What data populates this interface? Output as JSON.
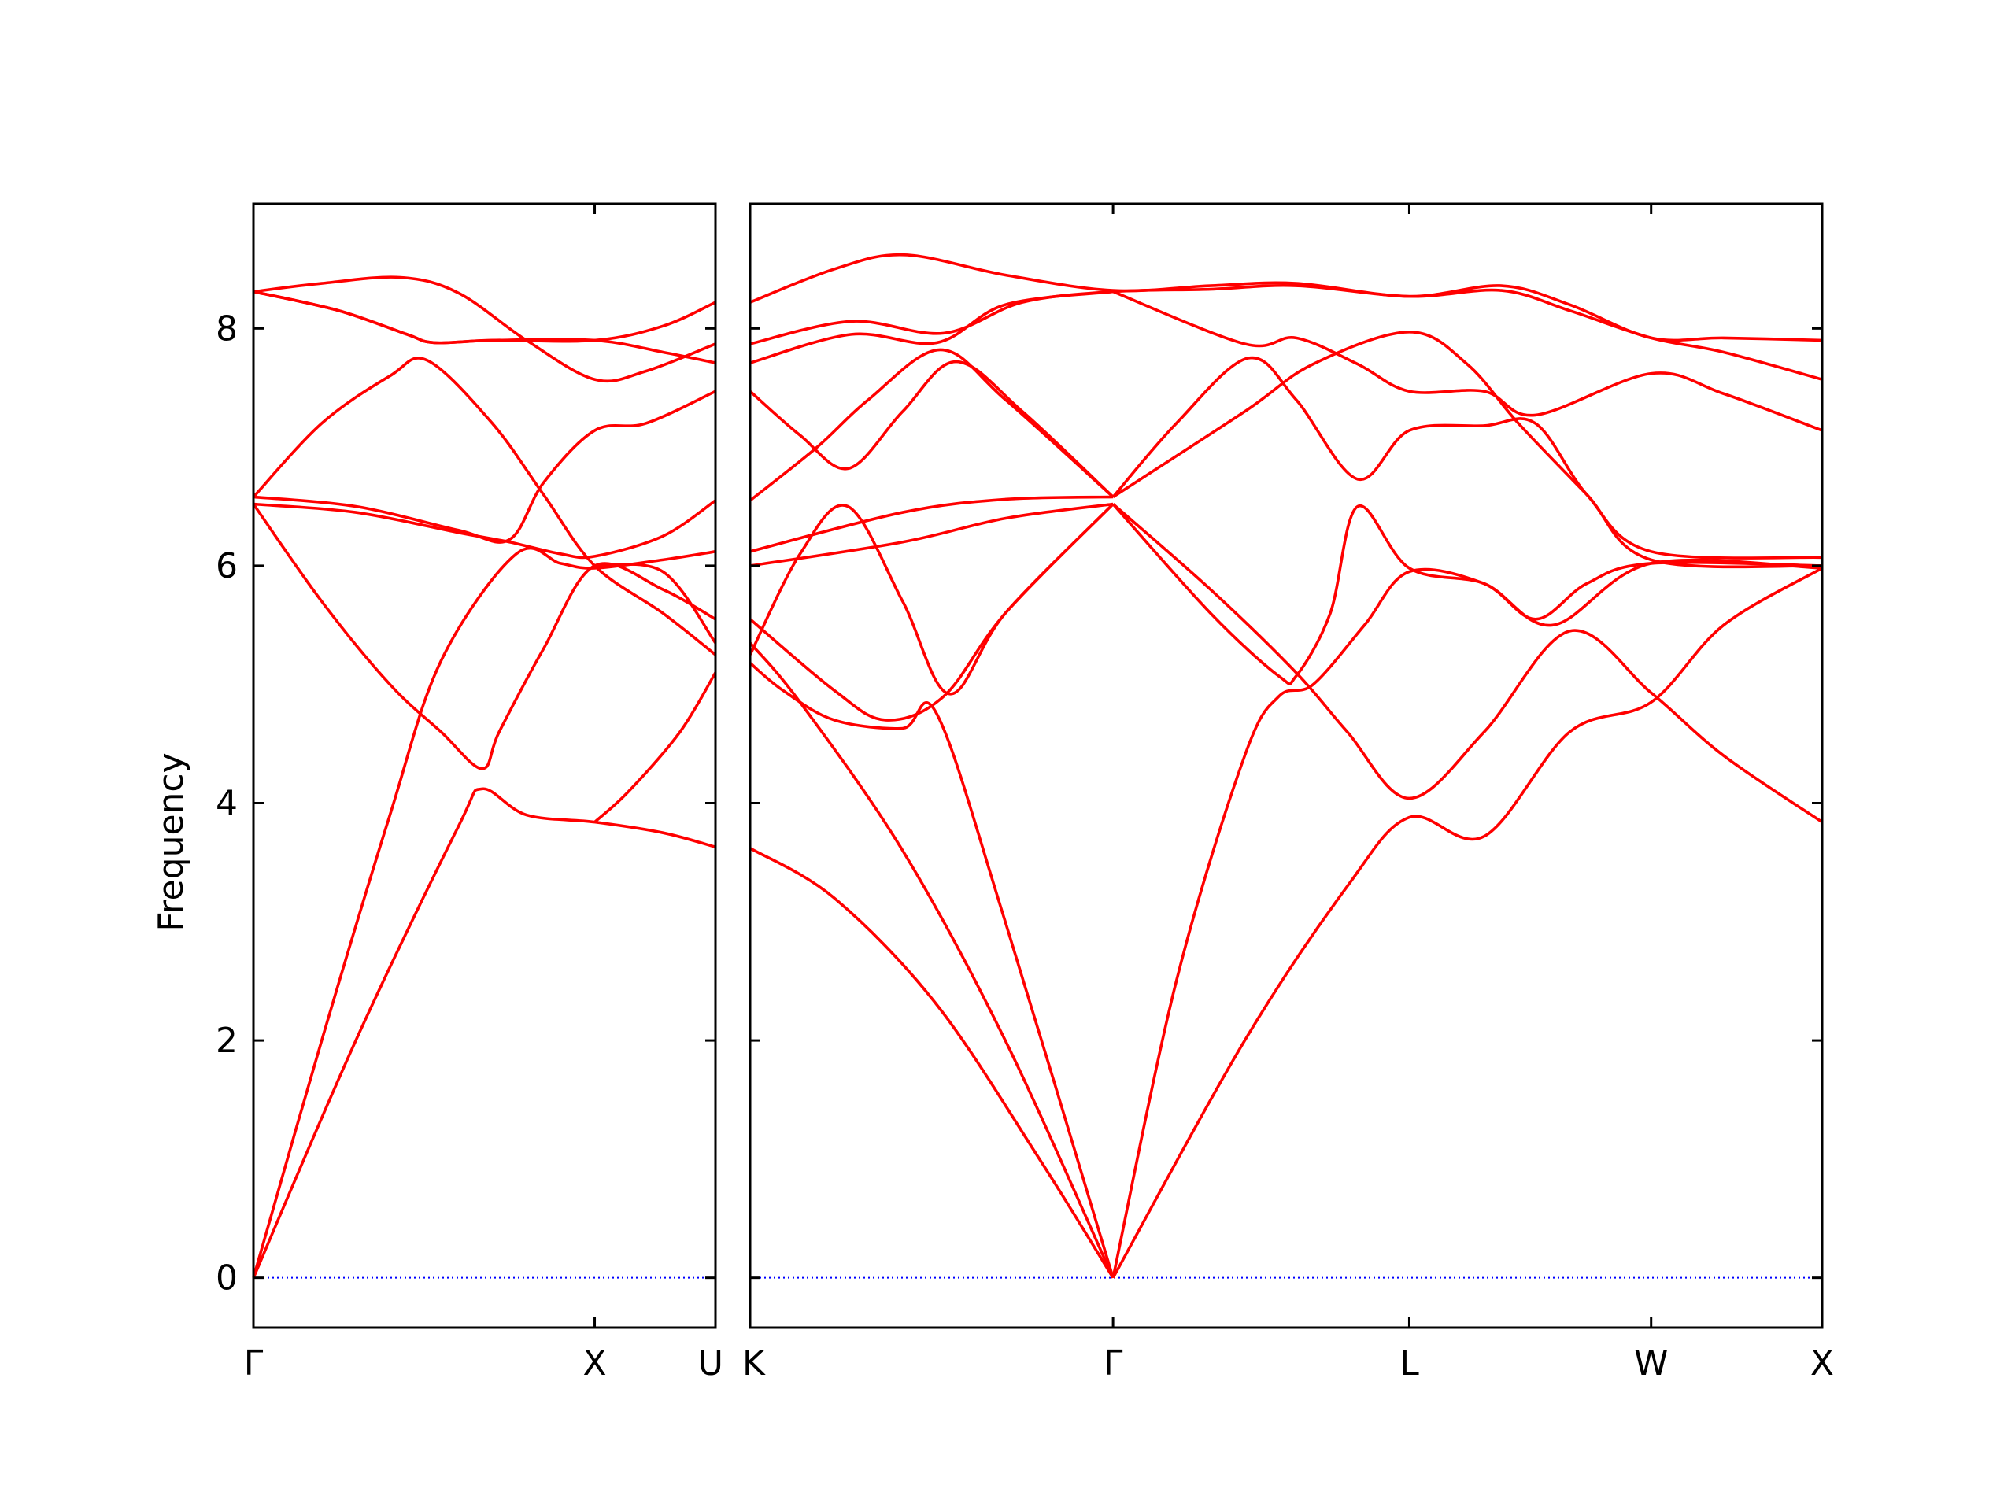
{
  "chart_data": {
    "type": "line",
    "title": "",
    "xlabel": "",
    "ylabel": "Frequency",
    "ylim": [
      -0.42,
      9.05
    ],
    "yticks": [
      0,
      2,
      4,
      6,
      8
    ],
    "grid": false,
    "line_color": "#ff0000",
    "zero_line_color": "#0000ff",
    "panels": [
      {
        "xlim": [
          0,
          1.354
        ],
        "ticks": [
          {
            "x": 0,
            "label": "Γ"
          },
          {
            "x": 1.0,
            "label": "X"
          },
          {
            "x": 1.354,
            "label": "U"
          }
        ]
      },
      {
        "xlim": [
          1.354,
          4.488
        ],
        "ticks": [
          {
            "x": 1.354,
            "label": "K"
          },
          {
            "x": 2.415,
            "label": "Γ"
          },
          {
            "x": 3.281,
            "label": "L"
          },
          {
            "x": 3.988,
            "label": "W"
          },
          {
            "x": 4.488,
            "label": "X"
          }
        ]
      }
    ],
    "series": [
      {
        "panel": 0,
        "points": [
          [
            0,
            8.31
          ],
          [
            0.2,
            8.38
          ],
          [
            0.43,
            8.43
          ],
          [
            0.6,
            8.3
          ],
          [
            0.8,
            7.9
          ],
          [
            1.0,
            7.57
          ],
          [
            1.15,
            7.64
          ],
          [
            1.354,
            7.87
          ]
        ]
      },
      {
        "panel": 0,
        "points": [
          [
            0,
            8.31
          ],
          [
            0.25,
            8.15
          ],
          [
            0.45,
            7.95
          ],
          [
            0.53,
            7.88
          ],
          [
            0.7,
            7.9
          ],
          [
            1.0,
            7.9
          ],
          [
            1.2,
            8.02
          ],
          [
            1.354,
            8.22
          ]
        ]
      },
      {
        "panel": 0,
        "points": [
          [
            0,
            8.31
          ],
          [
            0.25,
            8.15
          ],
          [
            0.45,
            7.95
          ],
          [
            0.53,
            7.88
          ],
          [
            0.7,
            7.9
          ],
          [
            1.0,
            7.9
          ],
          [
            1.2,
            7.8
          ],
          [
            1.354,
            7.71
          ]
        ]
      },
      {
        "panel": 0,
        "points": [
          [
            0,
            6.58
          ],
          [
            0.2,
            7.2
          ],
          [
            0.4,
            7.6
          ],
          [
            0.51,
            7.73
          ],
          [
            0.7,
            7.2
          ],
          [
            0.85,
            6.6
          ],
          [
            1.0,
            6.0
          ],
          [
            1.2,
            5.6
          ],
          [
            1.354,
            5.25
          ]
        ]
      },
      {
        "panel": 0,
        "points": [
          [
            0,
            6.52
          ],
          [
            0.2,
            5.7
          ],
          [
            0.4,
            5.0
          ],
          [
            0.55,
            4.6
          ],
          [
            0.67,
            4.29
          ],
          [
            0.72,
            4.6
          ],
          [
            0.85,
            5.3
          ],
          [
            1.0,
            6.0
          ],
          [
            1.2,
            5.8
          ],
          [
            1.354,
            5.55
          ]
        ]
      },
      {
        "panel": 0,
        "points": [
          [
            0,
            0
          ],
          [
            0.2,
            2.0
          ],
          [
            0.4,
            3.9
          ],
          [
            0.55,
            5.2
          ],
          [
            0.77,
            6.1
          ],
          [
            0.9,
            6.02
          ],
          [
            1.0,
            5.98
          ],
          [
            1.2,
            6.05
          ],
          [
            1.354,
            6.12
          ]
        ]
      },
      {
        "panel": 0,
        "points": [
          [
            0,
            0
          ],
          [
            0.3,
            2.0
          ],
          [
            0.6,
            3.8
          ],
          [
            0.67,
            4.12
          ],
          [
            0.8,
            3.9
          ],
          [
            1.0,
            3.84
          ],
          [
            1.2,
            3.75
          ],
          [
            1.354,
            3.63
          ]
        ]
      },
      {
        "panel": 0,
        "points": [
          [
            0,
            6.58
          ],
          [
            0.3,
            6.5
          ],
          [
            0.6,
            6.3
          ],
          [
            0.75,
            6.22
          ],
          [
            0.85,
            6.7
          ],
          [
            1.0,
            7.14
          ],
          [
            1.15,
            7.2
          ],
          [
            1.354,
            7.47
          ]
        ]
      },
      {
        "panel": 0,
        "points": [
          [
            0,
            6.52
          ],
          [
            0.3,
            6.45
          ],
          [
            0.6,
            6.28
          ],
          [
            0.75,
            6.2
          ],
          [
            0.9,
            6.1
          ],
          [
            1.0,
            6.08
          ],
          [
            1.2,
            6.25
          ],
          [
            1.354,
            6.55
          ]
        ]
      },
      {
        "panel": 0,
        "points": [
          [
            1.0,
            6.0
          ],
          [
            1.2,
            5.95
          ],
          [
            1.354,
            5.35
          ]
        ]
      },
      {
        "panel": 0,
        "points": [
          [
            1.0,
            3.84
          ],
          [
            1.1,
            4.1
          ],
          [
            1.25,
            4.6
          ],
          [
            1.354,
            5.1
          ]
        ]
      },
      {
        "panel": 1,
        "points": [
          [
            1.354,
            8.22
          ],
          [
            1.6,
            8.5
          ],
          [
            1.805,
            8.62
          ],
          [
            2.1,
            8.45
          ],
          [
            2.415,
            8.32
          ],
          [
            2.7,
            8.36
          ],
          [
            2.95,
            8.38
          ],
          [
            3.281,
            8.27
          ],
          [
            3.55,
            8.36
          ],
          [
            3.75,
            8.2
          ],
          [
            3.988,
            7.92
          ],
          [
            4.2,
            7.92
          ],
          [
            4.488,
            7.9
          ]
        ]
      },
      {
        "panel": 1,
        "points": [
          [
            1.354,
            7.87
          ],
          [
            1.65,
            8.06
          ],
          [
            1.92,
            7.96
          ],
          [
            2.15,
            8.22
          ],
          [
            2.415,
            8.31
          ],
          [
            2.7,
            8.33
          ],
          [
            2.95,
            8.36
          ],
          [
            3.281,
            8.27
          ],
          [
            3.55,
            8.32
          ],
          [
            3.75,
            8.15
          ],
          [
            3.988,
            7.92
          ],
          [
            4.2,
            7.8
          ],
          [
            4.488,
            7.57
          ]
        ]
      },
      {
        "panel": 1,
        "points": [
          [
            1.354,
            7.71
          ],
          [
            1.65,
            7.95
          ],
          [
            1.9,
            7.88
          ],
          [
            2.1,
            8.2
          ],
          [
            2.415,
            8.31
          ]
        ]
      },
      {
        "panel": 1,
        "points": [
          [
            1.354,
            7.47
          ],
          [
            1.5,
            7.1
          ],
          [
            1.642,
            6.82
          ],
          [
            1.8,
            7.3
          ],
          [
            1.956,
            7.72
          ],
          [
            2.15,
            7.3
          ],
          [
            2.415,
            6.58
          ]
        ]
      },
      {
        "panel": 1,
        "points": [
          [
            1.354,
            6.55
          ],
          [
            1.55,
            7.0
          ],
          [
            1.7,
            7.4
          ],
          [
            1.91,
            7.82
          ],
          [
            2.1,
            7.4
          ],
          [
            2.415,
            6.58
          ]
        ]
      },
      {
        "panel": 1,
        "points": [
          [
            1.354,
            6.12
          ],
          [
            1.8,
            6.45
          ],
          [
            2.1,
            6.56
          ],
          [
            2.415,
            6.58
          ]
        ]
      },
      {
        "panel": 1,
        "points": [
          [
            1.354,
            6.0
          ],
          [
            1.8,
            6.2
          ],
          [
            2.1,
            6.4
          ],
          [
            2.415,
            6.52
          ]
        ]
      },
      {
        "panel": 1,
        "points": [
          [
            1.354,
            5.55
          ],
          [
            1.6,
            4.95
          ],
          [
            1.75,
            4.7
          ],
          [
            1.92,
            4.9
          ],
          [
            2.1,
            5.6
          ],
          [
            2.415,
            6.52
          ]
        ]
      },
      {
        "panel": 1,
        "points": [
          [
            1.354,
            5.25
          ],
          [
            1.5,
            6.1
          ],
          [
            1.64,
            6.5
          ],
          [
            1.8,
            5.7
          ],
          [
            1.937,
            4.92
          ],
          [
            2.1,
            5.6
          ],
          [
            2.415,
            6.52
          ]
        ]
      },
      {
        "panel": 1,
        "points": [
          [
            1.354,
            5.18
          ],
          [
            1.45,
            4.95
          ],
          [
            1.6,
            4.7
          ],
          [
            1.8,
            4.63
          ],
          [
            1.9,
            4.75
          ],
          [
            2.1,
            3.0
          ],
          [
            2.415,
            0
          ]
        ]
      },
      {
        "panel": 1,
        "points": [
          [
            1.354,
            5.35
          ],
          [
            1.5,
            4.85
          ],
          [
            1.8,
            3.6
          ],
          [
            2.1,
            2.0
          ],
          [
            2.415,
            0
          ]
        ]
      },
      {
        "panel": 1,
        "points": [
          [
            1.354,
            3.62
          ],
          [
            1.6,
            3.2
          ],
          [
            1.9,
            2.3
          ],
          [
            2.2,
            1.0
          ],
          [
            2.415,
            0
          ]
        ]
      },
      {
        "panel": 1,
        "points": [
          [
            2.415,
            8.31
          ],
          [
            2.8,
            7.87
          ],
          [
            2.95,
            7.92
          ],
          [
            3.13,
            7.7
          ],
          [
            3.281,
            7.47
          ],
          [
            3.5,
            7.47
          ],
          [
            3.65,
            7.27
          ],
          [
            3.988,
            7.62
          ],
          [
            4.2,
            7.45
          ],
          [
            4.488,
            7.14
          ]
        ]
      },
      {
        "panel": 1,
        "points": [
          [
            2.415,
            6.58
          ],
          [
            2.6,
            7.2
          ],
          [
            2.81,
            7.75
          ],
          [
            2.95,
            7.4
          ],
          [
            3.13,
            6.73
          ],
          [
            3.281,
            7.14
          ],
          [
            3.5,
            7.18
          ],
          [
            3.65,
            7.2
          ],
          [
            3.8,
            6.6
          ],
          [
            3.988,
            6.12
          ],
          [
            4.488,
            6.07
          ]
        ]
      },
      {
        "panel": 1,
        "points": [
          [
            2.415,
            6.58
          ],
          [
            2.8,
            7.3
          ],
          [
            3.0,
            7.7
          ],
          [
            3.281,
            7.97
          ],
          [
            3.45,
            7.7
          ],
          [
            3.6,
            7.2
          ],
          [
            3.8,
            6.6
          ],
          [
            3.988,
            6.05
          ],
          [
            4.488,
            6.0
          ]
        ]
      },
      {
        "panel": 1,
        "points": [
          [
            2.415,
            6.52
          ],
          [
            2.7,
            5.6
          ],
          [
            2.9,
            5.07
          ],
          [
            2.95,
            5.07
          ],
          [
            3.05,
            5.6
          ],
          [
            3.13,
            6.5
          ],
          [
            3.281,
            5.98
          ],
          [
            3.5,
            5.85
          ],
          [
            3.65,
            5.55
          ],
          [
            3.8,
            5.85
          ],
          [
            3.988,
            6.02
          ],
          [
            4.488,
            6.0
          ]
        ]
      },
      {
        "panel": 1,
        "points": [
          [
            2.415,
            6.52
          ],
          [
            2.7,
            5.8
          ],
          [
            2.95,
            5.1
          ],
          [
            3.1,
            4.6
          ],
          [
            3.281,
            4.04
          ],
          [
            3.5,
            4.6
          ],
          [
            3.75,
            5.45
          ],
          [
            3.988,
            4.93
          ],
          [
            4.2,
            4.4
          ],
          [
            4.488,
            3.84
          ]
        ]
      },
      {
        "panel": 1,
        "points": [
          [
            2.415,
            0
          ],
          [
            2.6,
            2.5
          ],
          [
            2.8,
            4.4
          ],
          [
            2.9,
            4.9
          ],
          [
            3.0,
            5.0
          ],
          [
            3.15,
            5.5
          ],
          [
            3.281,
            5.95
          ],
          [
            3.5,
            5.85
          ],
          [
            3.7,
            5.5
          ],
          [
            3.988,
            6.02
          ],
          [
            4.488,
            5.98
          ]
        ]
      },
      {
        "panel": 1,
        "points": [
          [
            2.415,
            0
          ],
          [
            2.8,
            2.0
          ],
          [
            3.1,
            3.3
          ],
          [
            3.281,
            3.88
          ],
          [
            3.5,
            3.72
          ],
          [
            3.75,
            4.6
          ],
          [
            3.988,
            4.85
          ],
          [
            4.2,
            5.5
          ],
          [
            4.488,
            5.98
          ]
        ]
      }
    ]
  }
}
